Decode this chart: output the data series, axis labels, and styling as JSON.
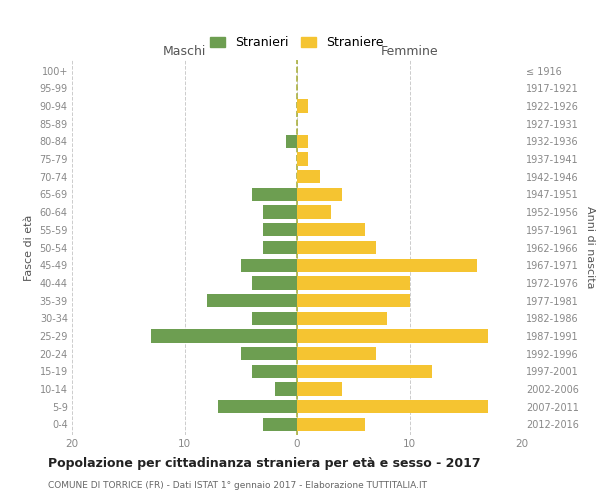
{
  "age_groups": [
    "100+",
    "95-99",
    "90-94",
    "85-89",
    "80-84",
    "75-79",
    "70-74",
    "65-69",
    "60-64",
    "55-59",
    "50-54",
    "45-49",
    "40-44",
    "35-39",
    "30-34",
    "25-29",
    "20-24",
    "15-19",
    "10-14",
    "5-9",
    "0-4"
  ],
  "birth_years": [
    "≤ 1916",
    "1917-1921",
    "1922-1926",
    "1927-1931",
    "1932-1936",
    "1937-1941",
    "1942-1946",
    "1947-1951",
    "1952-1956",
    "1957-1961",
    "1962-1966",
    "1967-1971",
    "1972-1976",
    "1977-1981",
    "1982-1986",
    "1987-1991",
    "1992-1996",
    "1997-2001",
    "2002-2006",
    "2007-2011",
    "2012-2016"
  ],
  "maschi": [
    0,
    0,
    0,
    0,
    1,
    0,
    0,
    4,
    3,
    3,
    3,
    5,
    4,
    8,
    4,
    13,
    5,
    4,
    2,
    7,
    3
  ],
  "femmine": [
    0,
    0,
    1,
    0,
    1,
    1,
    2,
    4,
    3,
    6,
    7,
    16,
    10,
    10,
    8,
    17,
    7,
    12,
    4,
    17,
    6
  ],
  "color_maschi": "#6d9e51",
  "color_femmine": "#f5c431",
  "background_color": "#ffffff",
  "grid_color": "#cccccc",
  "grid_linestyle": "--",
  "dashed_line_color": "#aab040",
  "title": "Popolazione per cittadinanza straniera per età e sesso - 2017",
  "subtitle": "COMUNE DI TORRICE (FR) - Dati ISTAT 1° gennaio 2017 - Elaborazione TUTTITALIA.IT",
  "xlabel_left": "Maschi",
  "xlabel_right": "Femmine",
  "ylabel_left": "Fasce di età",
  "ylabel_right": "Anni di nascita",
  "legend_stranieri": "Stranieri",
  "legend_straniere": "Straniere",
  "xlim": 20,
  "bar_height": 0.75,
  "tick_label_color": "#888888",
  "header_color": "#555555",
  "title_color": "#222222",
  "subtitle_color": "#666666"
}
